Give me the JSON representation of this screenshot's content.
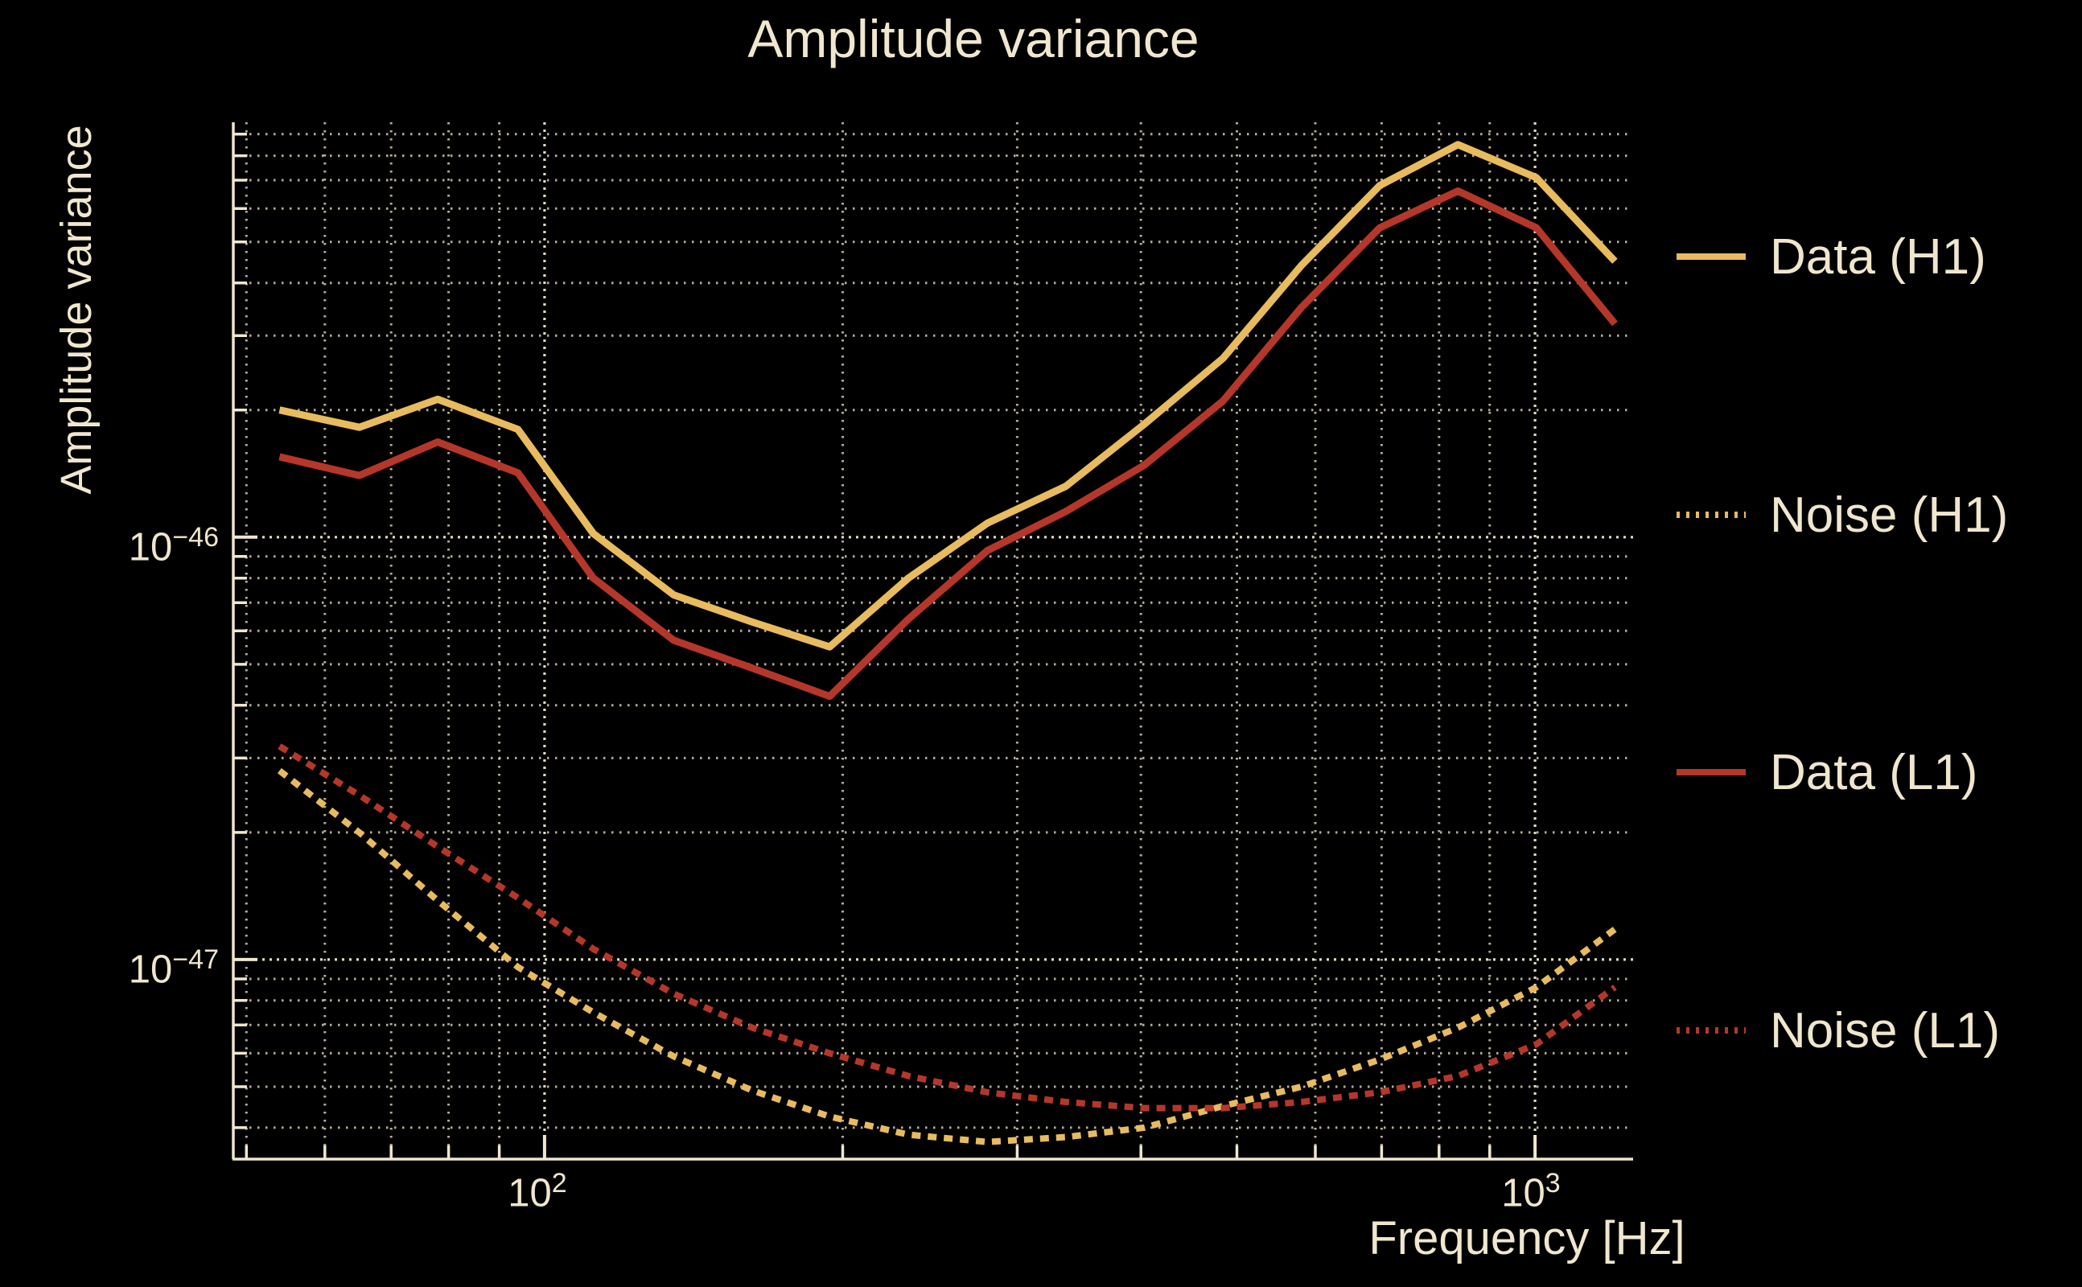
{
  "title": "Amplitude variance",
  "colors": {
    "background": "#000000",
    "foreground": "#efe6cd",
    "label_text": "#f0e7ce",
    "h1_gold": "#e8bb5e",
    "l1_red": "#b5372a",
    "grid": "#efe6cd"
  },
  "chart_data": {
    "type": "line",
    "title": "Amplitude variance",
    "xlabel": "Frequency [Hz]",
    "ylabel": "Amplitude variance",
    "xscale": "log",
    "yscale": "log",
    "xlim": [
      48.5,
      1256
    ],
    "ylim": [
      3.37e-48,
      9.6e-46
    ],
    "grid": "dotted log grid, major and minor",
    "legend_position": "right, outside axes",
    "x_ticks": [
      {
        "value": 100,
        "base": "10",
        "exp": "2"
      },
      {
        "value": 1000,
        "base": "10",
        "exp": "3"
      }
    ],
    "y_ticks": [
      {
        "value": 1e-46,
        "base": "10",
        "exp": "−46"
      },
      {
        "value": 1e-47,
        "base": "10",
        "exp": "−47"
      }
    ],
    "x": [
      54,
      65,
      78,
      94,
      112,
      135,
      162,
      194,
      233,
      280,
      336,
      403,
      484,
      581,
      697,
      836,
      1003,
      1204
    ],
    "series": [
      {
        "name": "Data (H1)",
        "style": "solid",
        "color": "#e8bb5e",
        "values": [
          2e-46,
          1.82e-46,
          2.12e-46,
          1.8e-46,
          1.02e-46,
          7.3e-47,
          6.3e-47,
          5.5e-47,
          8e-47,
          1.08e-46,
          1.32e-46,
          1.85e-46,
          2.65e-46,
          4.4e-46,
          6.8e-46,
          8.5e-46,
          7.1e-46,
          4.5e-46
        ]
      },
      {
        "name": "Noise (H1)",
        "style": "dotted",
        "color": "#e8bb5e",
        "values": [
          2.8e-47,
          2e-47,
          1.38e-47,
          9.6e-48,
          7.5e-48,
          5.9e-48,
          4.9e-48,
          4.25e-48,
          3.85e-48,
          3.7e-48,
          3.8e-48,
          4e-48,
          4.5e-48,
          5e-48,
          5.8e-48,
          6.9e-48,
          8.6e-48,
          1.18e-47
        ]
      },
      {
        "name": "Data (L1)",
        "style": "solid",
        "color": "#b5372a",
        "values": [
          1.55e-46,
          1.4e-46,
          1.68e-46,
          1.42e-46,
          8e-47,
          5.7e-47,
          4.9e-47,
          4.2e-47,
          6.4e-47,
          9.3e-47,
          1.15e-46,
          1.48e-46,
          2.1e-46,
          3.5e-46,
          5.4e-46,
          6.6e-46,
          5.4e-46,
          3.2e-46
        ]
      },
      {
        "name": "Noise (L1)",
        "style": "dotted",
        "color": "#b5372a",
        "values": [
          3.2e-47,
          2.45e-47,
          1.85e-47,
          1.4e-47,
          1.06e-47,
          8.3e-48,
          6.9e-48,
          6e-48,
          5.3e-48,
          4.85e-48,
          4.6e-48,
          4.45e-48,
          4.45e-48,
          4.6e-48,
          4.85e-48,
          5.3e-48,
          6.3e-48,
          8.6e-48
        ]
      }
    ]
  }
}
